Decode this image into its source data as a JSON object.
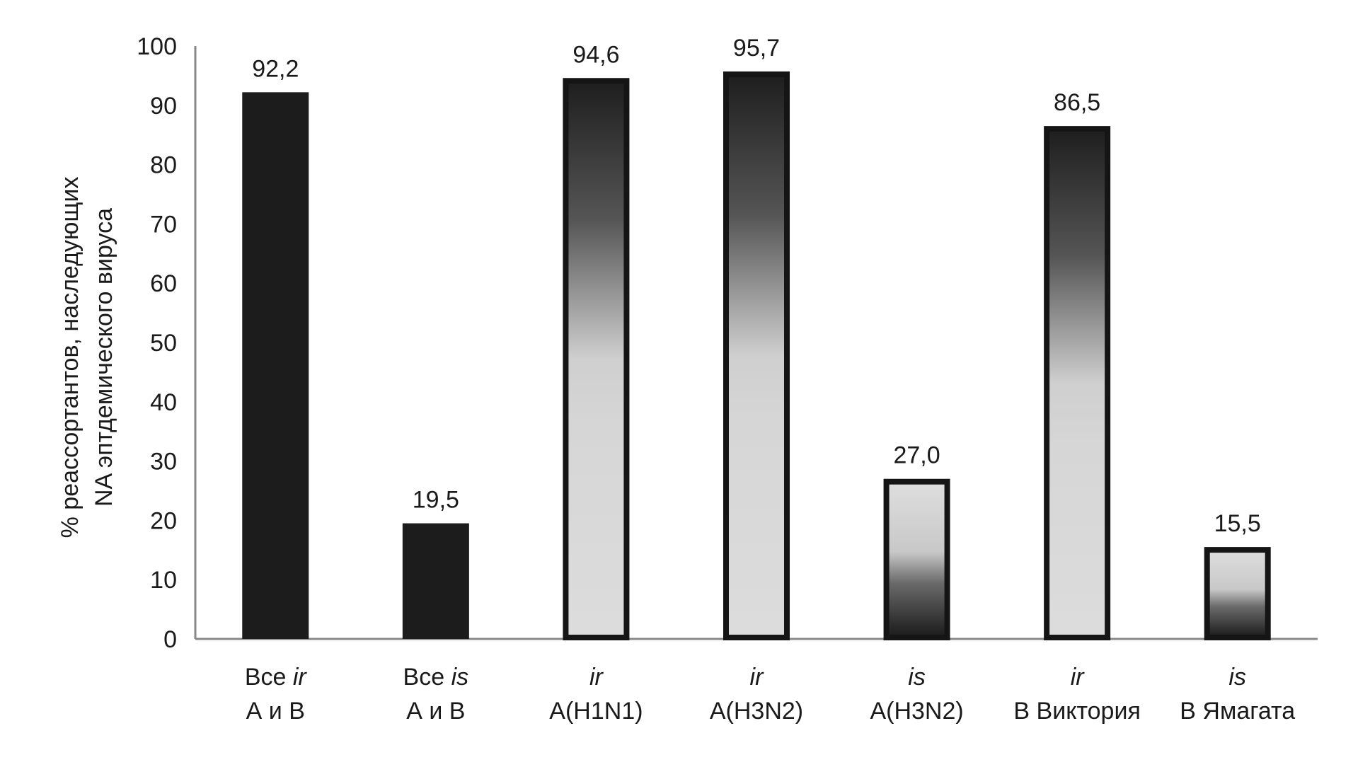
{
  "chart_data": {
    "type": "bar",
    "title": "",
    "xlabel": "",
    "ylabel": [
      "% реассортантов, наследующих",
      "NA эптдемического вируса"
    ],
    "ylim": [
      0,
      100
    ],
    "yticks": [
      0,
      10,
      20,
      30,
      40,
      50,
      60,
      70,
      80,
      90,
      100
    ],
    "grid": false,
    "categories": [
      {
        "line1_prefix": "Все ",
        "line1_italic": "ir",
        "line2": "А и В",
        "style": "solid"
      },
      {
        "line1_prefix": "Все ",
        "line1_italic": "is",
        "line2": "А и В",
        "style": "solid"
      },
      {
        "line1_prefix": "",
        "line1_italic": "ir",
        "line2": "А(H1N1)",
        "style": "gradient-down"
      },
      {
        "line1_prefix": "",
        "line1_italic": "ir",
        "line2": "А(H3N2)",
        "style": "gradient-down"
      },
      {
        "line1_prefix": "",
        "line1_italic": "is",
        "line2": "А(H3N2)",
        "style": "gradient-up"
      },
      {
        "line1_prefix": "",
        "line1_italic": "ir",
        "line2": "В Виктория",
        "style": "gradient-down"
      },
      {
        "line1_prefix": "",
        "line1_italic": "is",
        "line2": "В Ямагата",
        "style": "gradient-up"
      }
    ],
    "values": [
      92.2,
      19.5,
      94.6,
      95.7,
      27.0,
      86.5,
      15.5
    ],
    "value_labels": [
      "92,2",
      "19,5",
      "94,6",
      "95,7",
      "27,0",
      "86,5",
      "15,5"
    ],
    "colors": {
      "solid": "#1c1c1c",
      "dark": "#1e1e1e",
      "light": "#d8d8d8",
      "axis": "#888888"
    }
  }
}
